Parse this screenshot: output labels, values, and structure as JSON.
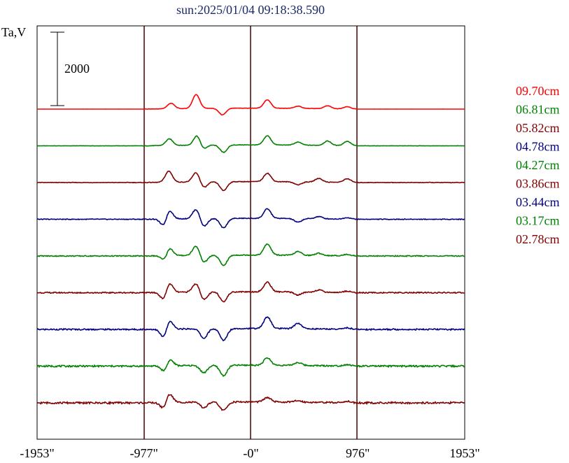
{
  "title": "sun:2025/01/04 09:18:38.590",
  "chart_data": {
    "type": "line",
    "title": "sun:2025/01/04 09:18:38.590",
    "ylabel": "Ta,V",
    "scale_bar_label": "2000",
    "x_tick_labels": [
      "-1953\"",
      "-977\"",
      "-0\"",
      "976\"",
      "1953\""
    ],
    "x_ticks": [
      -1953,
      -977,
      0,
      976,
      1953
    ],
    "xlim": [
      -1953,
      1953
    ],
    "grid": false,
    "legend_position": "right",
    "series": [
      {
        "name": "09.70cm",
        "color": "#ff0000",
        "offset_rank": 0,
        "peaks": [
          [
            -730,
            150
          ],
          [
            -500,
            380
          ],
          [
            -260,
            -180
          ],
          [
            150,
            230
          ],
          [
            430,
            60
          ],
          [
            700,
            80
          ],
          [
            880,
            60
          ]
        ]
      },
      {
        "name": "06.81cm",
        "color": "#008000",
        "offset_rank": 1,
        "peaks": [
          [
            -745,
            180
          ],
          [
            -490,
            280
          ],
          [
            -440,
            -130
          ],
          [
            -250,
            -200
          ],
          [
            150,
            250
          ],
          [
            430,
            80
          ],
          [
            700,
            120
          ],
          [
            880,
            120
          ]
        ]
      },
      {
        "name": "05.82cm",
        "color": "#800000",
        "offset_rank": 2,
        "peaks": [
          [
            -750,
            300
          ],
          [
            -500,
            260
          ],
          [
            -430,
            -160
          ],
          [
            -250,
            -240
          ],
          [
            150,
            230
          ],
          [
            430,
            -80
          ],
          [
            620,
            100
          ],
          [
            880,
            100
          ]
        ]
      },
      {
        "name": "04.78cm",
        "color": "#000080",
        "offset_rank": 3,
        "peaks": [
          [
            -790,
            -250
          ],
          [
            -750,
            300
          ],
          [
            -500,
            260
          ],
          [
            -430,
            -220
          ],
          [
            -250,
            -260
          ],
          [
            150,
            260
          ],
          [
            430,
            -100
          ],
          [
            620,
            60
          ],
          [
            880,
            40
          ]
        ]
      },
      {
        "name": "04.27cm",
        "color": "#008000",
        "offset_rank": 4,
        "peaks": [
          [
            -780,
            -220
          ],
          [
            -750,
            300
          ],
          [
            -500,
            260
          ],
          [
            -430,
            -200
          ],
          [
            -250,
            -280
          ],
          [
            150,
            300
          ],
          [
            430,
            100
          ],
          [
            620,
            60
          ],
          [
            880,
            40
          ]
        ]
      },
      {
        "name": "03.86cm",
        "color": "#800000",
        "offset_rank": 5,
        "peaks": [
          [
            -790,
            -260
          ],
          [
            -750,
            320
          ],
          [
            -500,
            240
          ],
          [
            -430,
            -220
          ],
          [
            -250,
            -260
          ],
          [
            150,
            260
          ],
          [
            430,
            -80
          ],
          [
            620,
            60
          ],
          [
            880,
            40
          ]
        ]
      },
      {
        "name": "03.44cm",
        "color": "#000080",
        "offset_rank": 6,
        "peaks": [
          [
            -790,
            -300
          ],
          [
            -750,
            300
          ],
          [
            -430,
            -260
          ],
          [
            -250,
            -320
          ],
          [
            150,
            320
          ],
          [
            430,
            150
          ],
          [
            880,
            40
          ]
        ]
      },
      {
        "name": "03.17cm",
        "color": "#008000",
        "offset_rank": 7,
        "peaks": [
          [
            -780,
            -250
          ],
          [
            -750,
            280
          ],
          [
            -430,
            -200
          ],
          [
            -250,
            -280
          ],
          [
            150,
            200
          ],
          [
            430,
            80
          ],
          [
            880,
            40
          ]
        ]
      },
      {
        "name": "02.78cm",
        "color": "#800000",
        "offset_rank": 8,
        "peaks": [
          [
            -790,
            -220
          ],
          [
            -750,
            300
          ],
          [
            -430,
            -150
          ],
          [
            -250,
            -230
          ],
          [
            150,
            120
          ],
          [
            430,
            40
          ],
          [
            880,
            40
          ]
        ]
      }
    ]
  }
}
